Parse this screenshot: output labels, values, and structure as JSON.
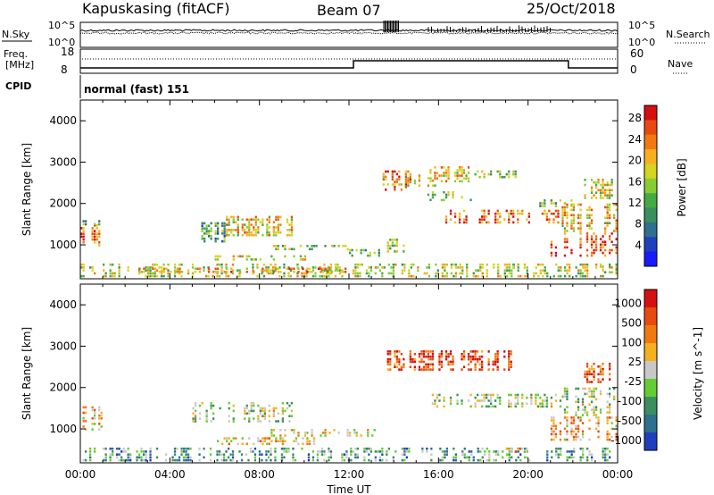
{
  "header": {
    "station": "Kapuskasing (fitACF)",
    "beam": "Beam 07",
    "date": "25/Oct/2018"
  },
  "summary_panels": {
    "nsky_label": "N.Sky",
    "nsky_ticks": [
      "10^5",
      "10^0"
    ],
    "nsearch_label": "N.Search",
    "nsearch_ticks": [
      "10^5",
      "10^0"
    ],
    "freq_label_line1": "Freq.",
    "freq_label_line2": "[MHz]",
    "freq_ticks": [
      "18",
      "8"
    ],
    "nave_label": "Nave",
    "nave_ticks": [
      "60",
      "0"
    ],
    "cpid_label": "CPID",
    "cpid_value": "normal (fast) 151"
  },
  "colors": {
    "power_scale": [
      "#1a1aff",
      "#1f3fbf",
      "#2f6f8f",
      "#3b8f5f",
      "#44aa44",
      "#88cc33",
      "#d4d421",
      "#f5b020",
      "#f07a10",
      "#e84a10",
      "#d41010"
    ],
    "velocity_scale": [
      "#1f3fbf",
      "#2f6f8f",
      "#3b8f5f",
      "#66cc33",
      "#c8c8c8",
      "#f5b020",
      "#f07a10",
      "#e84a10",
      "#d41010"
    ]
  },
  "chart_data": [
    {
      "type": "heatmap",
      "panel": "power",
      "xlabel": "",
      "ylabel": "Slant Range [km]",
      "y_ticks": [
        "1000",
        "2000",
        "3000",
        "4000"
      ],
      "y_tick_values": [
        1000,
        2000,
        3000,
        4000
      ],
      "ylim": [
        180,
        4500
      ],
      "xlim_hours": [
        0,
        24
      ],
      "colorbar_label": "Power [dB]",
      "colorbar_ticks": [
        "4",
        "8",
        "12",
        "16",
        "20",
        "24",
        "28"
      ],
      "colorbar_range": [
        0,
        30
      ],
      "patches": [
        {
          "t0": 0.0,
          "t1": 1.0,
          "r0": 950,
          "r1": 1500,
          "level": 0.8
        },
        {
          "t0": 0.0,
          "t1": 1.0,
          "r0": 1450,
          "r1": 1600,
          "level": 0.4
        },
        {
          "t0": 0.0,
          "t1": 24.0,
          "r0": 200,
          "r1": 550,
          "level": 0.55
        },
        {
          "t0": 2.5,
          "t1": 12.5,
          "r0": 300,
          "r1": 450,
          "level": 0.7
        },
        {
          "t0": 5.0,
          "t1": 6.5,
          "r0": 1050,
          "r1": 1550,
          "level": 0.35
        },
        {
          "t0": 6.5,
          "t1": 9.5,
          "r0": 1200,
          "r1": 1700,
          "level": 0.65
        },
        {
          "t0": 6.0,
          "t1": 10.5,
          "r0": 600,
          "r1": 750,
          "level": 0.6
        },
        {
          "t0": 8.5,
          "t1": 12.0,
          "r0": 850,
          "r1": 1000,
          "level": 0.5
        },
        {
          "t0": 12.0,
          "t1": 13.5,
          "r0": 700,
          "r1": 900,
          "level": 0.4
        },
        {
          "t0": 13.5,
          "t1": 14.5,
          "r0": 800,
          "r1": 1150,
          "level": 0.5
        },
        {
          "t0": 13.5,
          "t1": 14.8,
          "r0": 2300,
          "r1": 2800,
          "level": 0.75
        },
        {
          "t0": 14.5,
          "t1": 16.0,
          "r0": 2400,
          "r1": 2700,
          "level": 0.6
        },
        {
          "t0": 15.5,
          "t1": 17.5,
          "r0": 2500,
          "r1": 2900,
          "level": 0.65
        },
        {
          "t0": 17.5,
          "t1": 19.5,
          "r0": 2600,
          "r1": 2800,
          "level": 0.5
        },
        {
          "t0": 15.5,
          "t1": 17.5,
          "r0": 2050,
          "r1": 2300,
          "level": 0.5
        },
        {
          "t0": 16.0,
          "t1": 21.5,
          "r0": 1500,
          "r1": 1850,
          "level": 0.8
        },
        {
          "t0": 20.5,
          "t1": 22.0,
          "r0": 1900,
          "r1": 2100,
          "level": 0.45
        },
        {
          "t0": 21.0,
          "t1": 24.0,
          "r0": 700,
          "r1": 1300,
          "level": 0.9
        },
        {
          "t0": 21.5,
          "t1": 24.0,
          "r0": 1300,
          "r1": 2000,
          "level": 0.65
        },
        {
          "t0": 22.5,
          "t1": 23.8,
          "r0": 2100,
          "r1": 2600,
          "level": 0.6
        },
        {
          "t0": 19.0,
          "t1": 20.0,
          "r0": 400,
          "r1": 550,
          "level": 0.5
        },
        {
          "t0": 23.0,
          "t1": 24.0,
          "r0": 300,
          "r1": 500,
          "level": 0.45
        }
      ]
    },
    {
      "type": "heatmap",
      "panel": "velocity",
      "xlabel": "Time UT",
      "ylabel": "Slant Range [km]",
      "y_ticks": [
        "1000",
        "2000",
        "3000",
        "4000"
      ],
      "y_tick_values": [
        1000,
        2000,
        3000,
        4000
      ],
      "ylim": [
        180,
        4500
      ],
      "x_ticks": [
        "00:00",
        "04:00",
        "08:00",
        "12:00",
        "16:00",
        "20:00",
        "00:00"
      ],
      "x_tick_values": [
        0,
        4,
        8,
        12,
        16,
        20,
        24
      ],
      "xlim_hours": [
        0,
        24
      ],
      "colorbar_label": "Velocity [m s^-1]",
      "colorbar_ticks": [
        "1000",
        "500",
        "100",
        "25",
        "-25",
        "-100",
        "-500",
        "-1000"
      ],
      "patches": [
        {
          "t0": 0.0,
          "t1": 1.0,
          "r0": 950,
          "r1": 1550,
          "level": 0.6
        },
        {
          "t0": 0.0,
          "t1": 24.0,
          "r0": 200,
          "r1": 550,
          "level": 0.3
        },
        {
          "t0": 5.0,
          "t1": 9.5,
          "r0": 1150,
          "r1": 1650,
          "level": 0.45
        },
        {
          "t0": 6.0,
          "t1": 10.5,
          "r0": 600,
          "r1": 800,
          "level": 0.6
        },
        {
          "t0": 8.5,
          "t1": 13.5,
          "r0": 800,
          "r1": 1000,
          "level": 0.55
        },
        {
          "t0": 13.5,
          "t1": 19.5,
          "r0": 2400,
          "r1": 2900,
          "level": 0.85
        },
        {
          "t0": 15.5,
          "t1": 21.5,
          "r0": 1500,
          "r1": 1850,
          "level": 0.45
        },
        {
          "t0": 21.0,
          "t1": 24.0,
          "r0": 700,
          "r1": 1300,
          "level": 0.65
        },
        {
          "t0": 21.5,
          "t1": 24.0,
          "r0": 1300,
          "r1": 2000,
          "level": 0.45
        },
        {
          "t0": 22.5,
          "t1": 23.8,
          "r0": 2100,
          "r1": 2600,
          "level": 0.8
        },
        {
          "t0": 19.0,
          "t1": 20.0,
          "r0": 400,
          "r1": 550,
          "level": 0.65
        }
      ]
    }
  ]
}
